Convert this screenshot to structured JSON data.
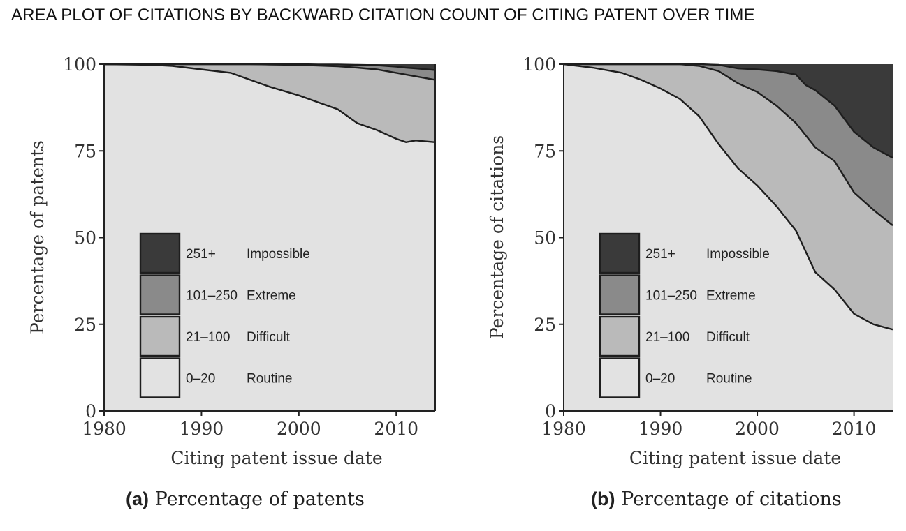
{
  "figure": {
    "title": "AREA PLOT OF CITATIONS BY BACKWARD CITATION COUNT OF CITING PATENT OVER TIME"
  },
  "legend": [
    {
      "range": "251+",
      "label": "Impossible",
      "color": "#3a3a3a"
    },
    {
      "range": "101–250",
      "label": "Extreme",
      "color": "#8a8a8a"
    },
    {
      "range": "21–100",
      "label": "Difficult",
      "color": "#bababa"
    },
    {
      "range": "0–20",
      "label": "Routine",
      "color": "#e2e2e2"
    }
  ],
  "chart_data": [
    {
      "type": "area",
      "stacked": true,
      "caption_tag": "(a)",
      "caption_text": "Percentage of patents",
      "xlabel": "Citing patent issue date",
      "ylabel": "Percentage of patents",
      "xlim": [
        1980,
        2014
      ],
      "ylim": [
        0,
        100
      ],
      "xticks": [
        1980,
        1990,
        2000,
        2010
      ],
      "yticks": [
        0,
        25,
        50,
        75,
        100
      ],
      "x": [
        1980,
        1985,
        1987,
        1990,
        1993,
        1995,
        1997,
        2000,
        2002,
        2004,
        2006,
        2008,
        2010,
        2011,
        2012,
        2014
      ],
      "series": [
        {
          "name": "0–20",
          "values": [
            100,
            99.8,
            99.5,
            98.5,
            97.5,
            95.5,
            93.5,
            91,
            89,
            87,
            83,
            81,
            78.5,
            77.5,
            78,
            77.5
          ]
        },
        {
          "name": "21–100",
          "values": [
            0,
            0.2,
            0.5,
            1.5,
            2.5,
            4.5,
            6.4,
            8.8,
            10.6,
            12.4,
            16,
            17.5,
            19,
            19.5,
            18.5,
            18
          ]
        },
        {
          "name": "101–250",
          "values": [
            0,
            0,
            0,
            0,
            0,
            0,
            0.1,
            0.2,
            0.3,
            0.5,
            0.8,
            1.2,
            1.8,
            2,
            2.3,
            2.8
          ]
        },
        {
          "name": "251+",
          "values": [
            0,
            0,
            0,
            0,
            0,
            0,
            0,
            0,
            0.1,
            0.1,
            0.2,
            0.3,
            0.7,
            1,
            1.2,
            1.7
          ]
        }
      ]
    },
    {
      "type": "area",
      "stacked": true,
      "caption_tag": "(b)",
      "caption_text": "Percentage of citations",
      "xlabel": "Citing patent issue date",
      "ylabel": "Percentage of citations",
      "xlim": [
        1980,
        2014
      ],
      "ylim": [
        0,
        100
      ],
      "xticks": [
        1980,
        1990,
        2000,
        2010
      ],
      "yticks": [
        0,
        25,
        50,
        75,
        100
      ],
      "x": [
        1980,
        1983,
        1986,
        1988,
        1990,
        1992,
        1994,
        1996,
        1998,
        2000,
        2002,
        2004,
        2005,
        2006,
        2008,
        2010,
        2012,
        2014
      ],
      "series": [
        {
          "name": "0–20",
          "values": [
            100,
            99,
            97.5,
            95.5,
            93,
            90,
            85,
            77,
            70,
            65,
            59,
            52,
            46,
            40,
            35,
            28,
            25,
            23.5
          ]
        },
        {
          "name": "21–100",
          "values": [
            0,
            1,
            2.5,
            4.5,
            7,
            10,
            14.5,
            21,
            24.5,
            27,
            29,
            31,
            33.5,
            36,
            37,
            35,
            33,
            30
          ]
        },
        {
          "name": "101–250",
          "values": [
            0,
            0,
            0,
            0,
            0,
            0,
            0.5,
            1.8,
            4.3,
            6.5,
            10,
            14,
            14.5,
            16.5,
            16,
            17.5,
            18,
            19.5
          ]
        },
        {
          "name": "251+",
          "values": [
            0,
            0,
            0,
            0,
            0,
            0,
            0,
            0.2,
            1.2,
            1.5,
            2,
            3,
            6,
            7.5,
            12,
            19.5,
            24,
            27
          ]
        }
      ]
    }
  ]
}
